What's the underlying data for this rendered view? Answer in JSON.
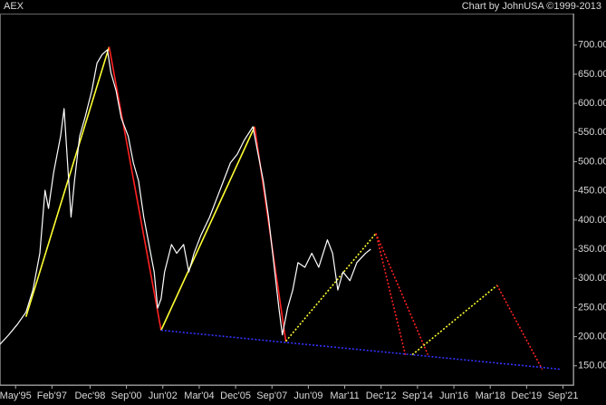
{
  "chart_data": {
    "type": "line",
    "title": "AEX",
    "subtitle": "Chart by JohnUSA ©1999-2013",
    "xlim": [
      "1994-08",
      "2022-03"
    ],
    "xticks": [
      {
        "value": "1995-05",
        "label": "May'95"
      },
      {
        "value": "1997-02",
        "label": "Feb'97"
      },
      {
        "value": "1998-12",
        "label": "Dec'98"
      },
      {
        "value": "2000-09",
        "label": "Sep'00"
      },
      {
        "value": "2002-06",
        "label": "Jun'02"
      },
      {
        "value": "2004-03",
        "label": "Mar'04"
      },
      {
        "value": "2005-12",
        "label": "Dec'05"
      },
      {
        "value": "2007-09",
        "label": "Sep'07"
      },
      {
        "value": "2009-06",
        "label": "Jun'09"
      },
      {
        "value": "2011-03",
        "label": "Mar'11"
      },
      {
        "value": "2012-12",
        "label": "Dec'12"
      },
      {
        "value": "2014-09",
        "label": "Sep'14"
      },
      {
        "value": "2016-06",
        "label": "Jun'16"
      },
      {
        "value": "2018-03",
        "label": "Mar'18"
      },
      {
        "value": "2019-12",
        "label": "Dec'19"
      },
      {
        "value": "2021-09",
        "label": "Sep'21"
      }
    ],
    "ylim": [
      117,
      754
    ],
    "yticks": [
      {
        "value": 150,
        "label": "150.00"
      },
      {
        "value": 200,
        "label": "200.00"
      },
      {
        "value": 250,
        "label": "250.00"
      },
      {
        "value": 300,
        "label": "300.00"
      },
      {
        "value": 350,
        "label": "350.00"
      },
      {
        "value": 400,
        "label": "400.00"
      },
      {
        "value": 450,
        "label": "450.00"
      },
      {
        "value": 500,
        "label": "500.00"
      },
      {
        "value": 550,
        "label": "550.00"
      },
      {
        "value": 600,
        "label": "600.00"
      },
      {
        "value": 650,
        "label": "650.00"
      },
      {
        "value": 700,
        "label": "700.00"
      }
    ],
    "grid": false,
    "x": [
      "1994-08",
      "1995-01",
      "1995-06",
      "1995-11",
      "1996-03",
      "1996-07",
      "1996-10",
      "1996-12",
      "1997-03",
      "1997-07",
      "1997-09",
      "1997-11",
      "1998-01",
      "1998-03",
      "1998-06",
      "1998-09",
      "1999-01",
      "1999-04",
      "1999-07",
      "1999-10",
      "1999-12",
      "2000-03",
      "2000-06",
      "2000-10",
      "2001-01",
      "2001-04",
      "2001-07",
      "2001-10",
      "2002-01",
      "2002-03",
      "2002-05",
      "2002-07",
      "2002-11",
      "2003-02",
      "2003-06",
      "2003-09",
      "2003-12",
      "2004-04",
      "2004-09",
      "2005-01",
      "2005-05",
      "2005-09",
      "2006-01",
      "2006-05",
      "2006-10",
      "2007-01",
      "2007-04",
      "2007-07",
      "2007-10",
      "2008-01",
      "2008-03",
      "2008-06",
      "2008-09",
      "2008-12",
      "2009-04",
      "2009-08",
      "2009-12",
      "2010-05",
      "2010-08",
      "2010-11",
      "2011-02",
      "2011-06",
      "2011-10",
      "2012-03",
      "2012-06"
    ],
    "series": [
      {
        "color": "#ffffff",
        "values": [
          187,
          203,
          221,
          242,
          280,
          343,
          451,
          420,
          482,
          544,
          591,
          498,
          405,
          467,
          544,
          575,
          622,
          669,
          684,
          692,
          653,
          622,
          575,
          544,
          498,
          467,
          405,
          358,
          311,
          249,
          265,
          311,
          358,
          343,
          358,
          311,
          343,
          374,
          405,
          436,
          467,
          498,
          513,
          537,
          560,
          513,
          467,
          405,
          327,
          249,
          203,
          249,
          280,
          327,
          319,
          343,
          319,
          366,
          343,
          280,
          311,
          296,
          327,
          343,
          350
        ]
      }
    ],
    "trend_lines": [
      {
        "color": "#ffff33",
        "dotted": false,
        "x": [
          "1995-11",
          "1999-11"
        ],
        "values": [
          234,
          697
        ]
      },
      {
        "color": "#ff2222",
        "dotted": false,
        "x": [
          "1999-11",
          "2002-05"
        ],
        "values": [
          697,
          211
        ]
      },
      {
        "color": "#ffff33",
        "dotted": false,
        "x": [
          "2002-05",
          "2006-11"
        ],
        "values": [
          211,
          560
        ]
      },
      {
        "color": "#ff2222",
        "dotted": false,
        "x": [
          "2006-11",
          "2008-05"
        ],
        "values": [
          560,
          192
        ]
      },
      {
        "color": "#ffff33",
        "dotted": true,
        "x": [
          "2008-05",
          "2012-09"
        ],
        "values": [
          192,
          377
        ]
      },
      {
        "color": "#ff2222",
        "dotted": true,
        "x": [
          "2012-09",
          "2014-02"
        ],
        "values": [
          377,
          169
        ]
      },
      {
        "color": "#ff2222",
        "dotted": true,
        "x": [
          "2012-09",
          "2015-03"
        ],
        "values": [
          377,
          169
        ]
      },
      {
        "color": "#ffff33",
        "dotted": true,
        "x": [
          "2014-06",
          "2018-07"
        ],
        "values": [
          169,
          288
        ]
      },
      {
        "color": "#ff2222",
        "dotted": true,
        "x": [
          "2018-07",
          "2020-09"
        ],
        "values": [
          288,
          144
        ]
      },
      {
        "color": "#3333ff",
        "dotted": true,
        "x": [
          "2002-05",
          "2021-08"
        ],
        "values": [
          211,
          144
        ]
      }
    ]
  }
}
